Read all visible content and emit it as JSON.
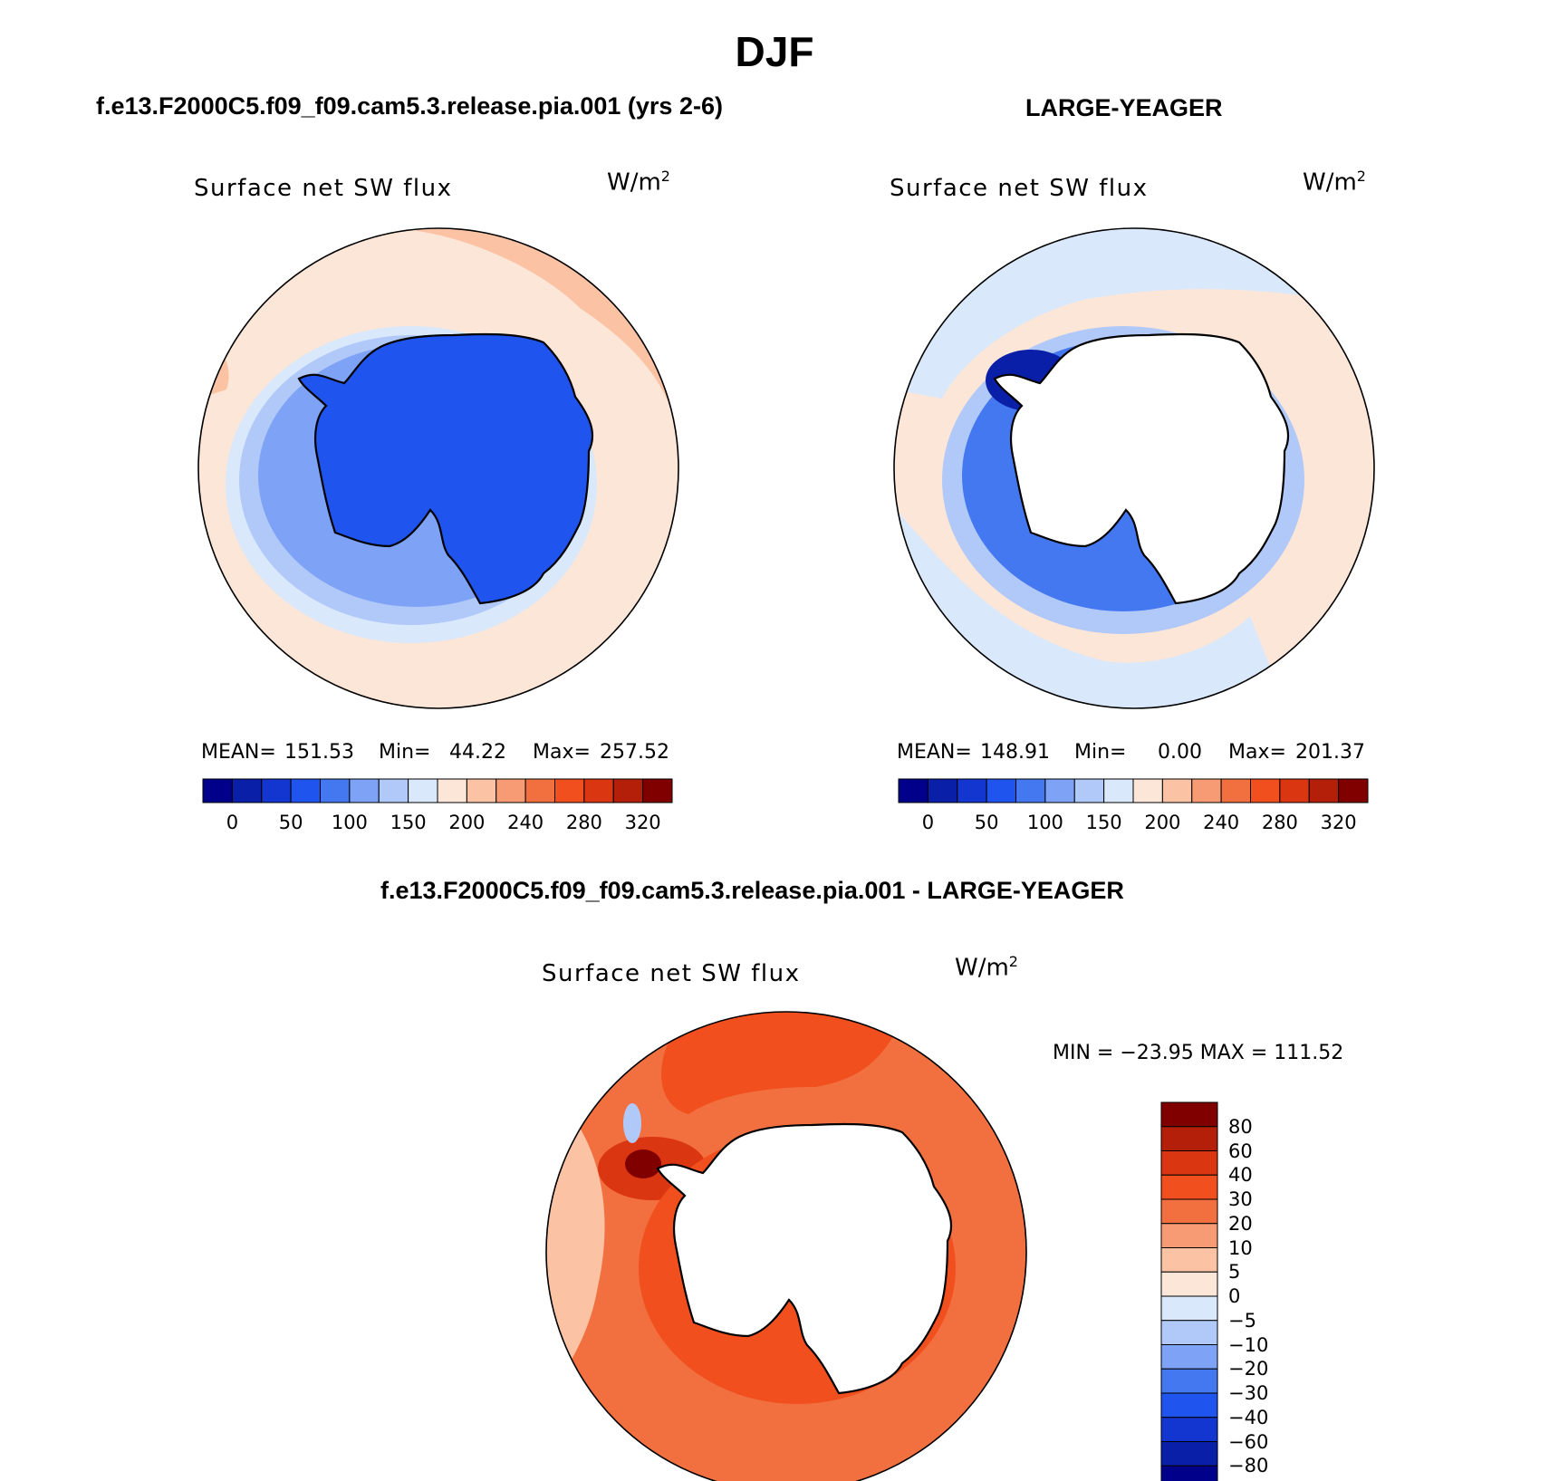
{
  "title": "DJF",
  "panels": [
    {
      "case_title": "f.e13.F2000C5.f09_f09.cam5.3.release.pia.001 (yrs 2-6)",
      "field": "Surface net SW flux",
      "units": "W/m",
      "units_sup": "2",
      "stats": {
        "mean_label": "MEAN=",
        "mean": "151.53",
        "min_label": "Min=",
        "min": "44.22",
        "max_label": "Max=",
        "max": "257.52"
      },
      "colorbar_ticks": [
        "0",
        "50",
        "100",
        "150",
        "200",
        "240",
        "280",
        "320"
      ]
    },
    {
      "case_title": "LARGE-YEAGER",
      "field": "Surface net SW flux",
      "units": "W/m",
      "units_sup": "2",
      "stats": {
        "mean_label": "MEAN=",
        "mean": "148.91",
        "min_label": "Min=",
        "min": "0.00",
        "max_label": "Max=",
        "max": "201.37"
      },
      "colorbar_ticks": [
        "0",
        "50",
        "100",
        "150",
        "200",
        "240",
        "280",
        "320"
      ]
    }
  ],
  "diff_panel": {
    "case_title": "f.e13.F2000C5.f09_f09.cam5.3.release.pia.001 - LARGE-YEAGER",
    "field": "Surface net SW flux",
    "units": "W/m",
    "units_sup": "2",
    "minmax": "MIN = −23.95 MAX = 111.52",
    "colorbar_ticks": [
      "80",
      "60",
      "40",
      "30",
      "20",
      "10",
      "5",
      "0",
      "−5",
      "−10",
      "−20",
      "−30",
      "−40",
      "−60",
      "−80"
    ]
  },
  "colors": {
    "abs_scale": [
      "#00008b",
      "#0a1fa8",
      "#1236cf",
      "#1f54ee",
      "#4478f0",
      "#7ea2f5",
      "#b1c9f8",
      "#d9e8fb",
      "#fce6d8",
      "#fbc3a4",
      "#f69b74",
      "#f2703f",
      "#f1501e",
      "#db3612",
      "#b41f0a",
      "#800000"
    ],
    "diff_scale": [
      "#00008b",
      "#0a1fa8",
      "#1236cf",
      "#1f54ee",
      "#4478f0",
      "#7ea2f5",
      "#b1c9f8",
      "#d9e8fb",
      "#fce6d8",
      "#fbc3a4",
      "#f69b74",
      "#f2703f",
      "#f1501e",
      "#db3612",
      "#b41f0a",
      "#800000"
    ],
    "land": "#ffffff",
    "coast": "#000000"
  }
}
